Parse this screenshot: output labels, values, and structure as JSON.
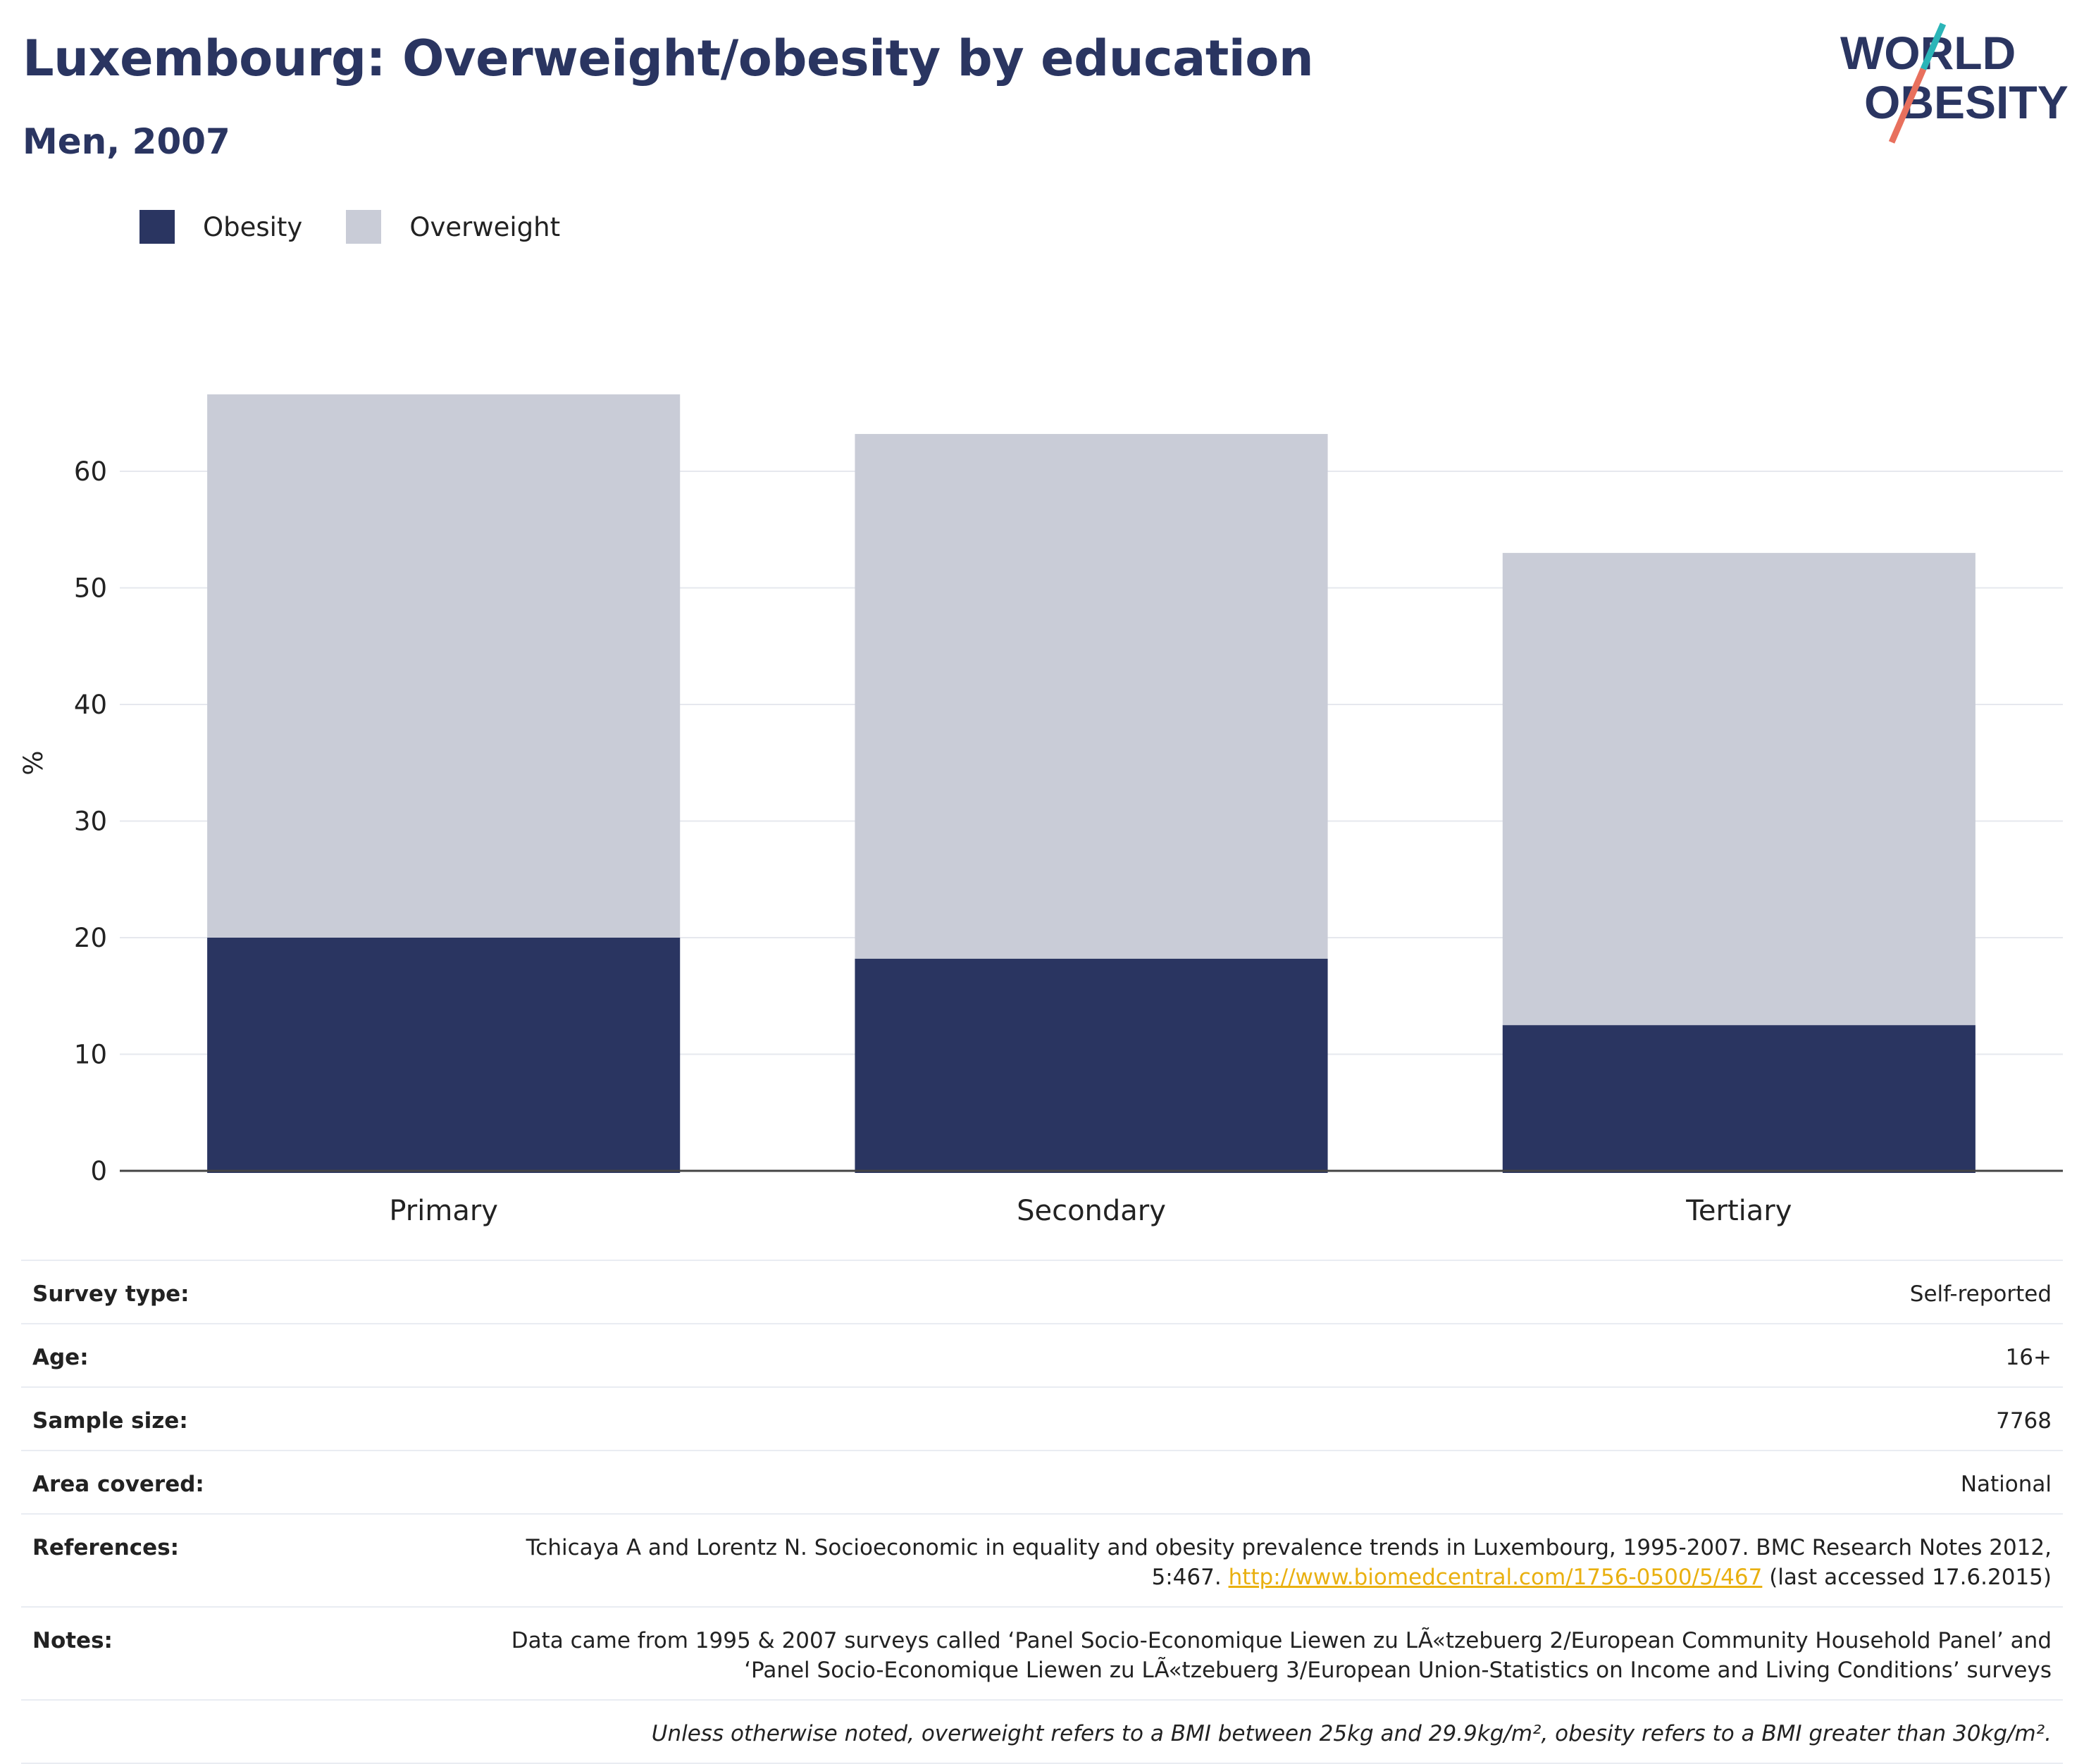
{
  "header": {
    "title": "Luxembourg: Overweight/obesity by education",
    "subtitle": "Men, 2007"
  },
  "logo": {
    "line1": "WORLD",
    "line2": "OBESITY",
    "colors": {
      "text": "#2a3561",
      "slash_top": "#2bb5b8",
      "slash_bottom": "#e8705d"
    }
  },
  "legend": [
    {
      "label": "Obesity",
      "color": "#2a3561"
    },
    {
      "label": "Overweight",
      "color": "#c9ccd7"
    }
  ],
  "chart_data": {
    "type": "bar",
    "stacked": true,
    "categories": [
      "Primary",
      "Secondary",
      "Tertiary"
    ],
    "series": [
      {
        "name": "Obesity",
        "values": [
          20.0,
          18.2,
          12.5
        ],
        "color": "#2a3561"
      },
      {
        "name": "Overweight",
        "values": [
          46.6,
          45.0,
          40.5
        ],
        "color": "#c9ccd7"
      }
    ],
    "ylabel": "%",
    "xlabel": "",
    "ylim": [
      0,
      70
    ],
    "yticks": [
      0,
      10,
      20,
      30,
      40,
      50,
      60
    ],
    "grid": true,
    "legend_position": "top-left"
  },
  "meta": {
    "survey_type": {
      "label": "Survey type:",
      "value": "Self-reported"
    },
    "age": {
      "label": "Age:",
      "value": "16+"
    },
    "sample_size": {
      "label": "Sample size:",
      "value": "7768"
    },
    "area_covered": {
      "label": "Area covered:",
      "value": "National"
    },
    "references": {
      "label": "References:",
      "text_before": "Tchicaya A and Lorentz N. Socioeconomic in equality and obesity prevalence trends in Luxembourg, 1995-2007. BMC Research Notes 2012, 5:467.",
      "link": "http://www.biomedcentral.com/1756-0500/5/467",
      "text_after": "(last accessed 17.6.2015)"
    },
    "notes": {
      "label": "Notes:",
      "value": "Data came from 1995 & 2007 surveys called ‘Panel Socio-Economique Liewen zu LÃ«tzebuerg 2/European Community Household Panel’ and ‘Panel Socio-Economique Liewen zu LÃ«tzebuerg 3/European Union-Statistics on Income and Living Conditions’ surveys"
    },
    "footnote": "Unless otherwise noted, overweight refers to a BMI between 25kg and 29.9kg/m², obesity refers to a BMI greater than 30kg/m²."
  }
}
